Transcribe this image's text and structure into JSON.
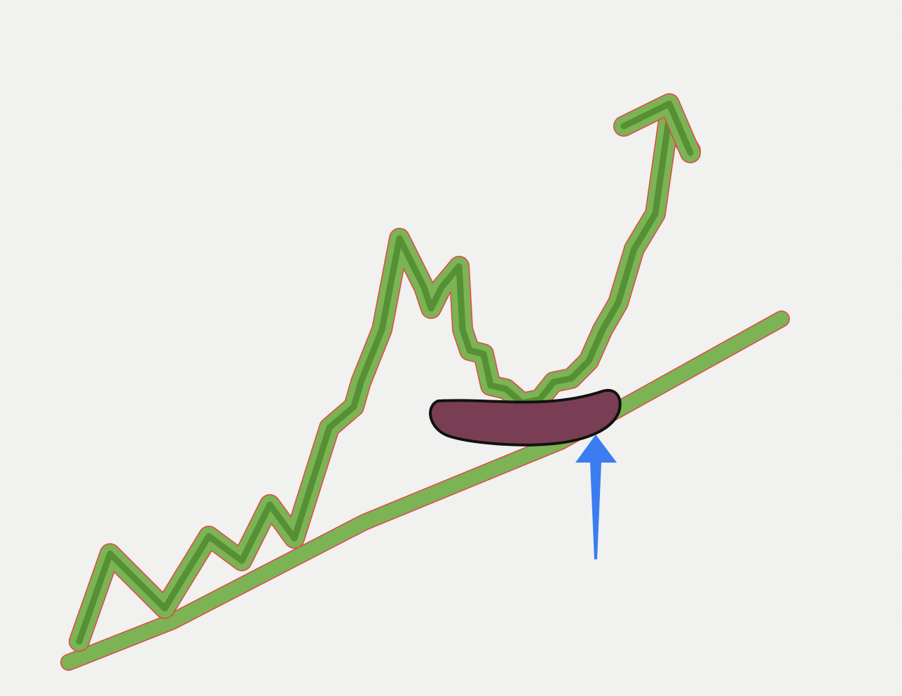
{
  "diagram": {
    "background_color": "#f3f3f1",
    "trendline": {
      "color": "#7cb354",
      "edge_color": "#e0474c",
      "shape": "straight-line"
    },
    "price_path": {
      "color": "#7cb354",
      "inner_color": "#4f8a2f",
      "edge_color": "#e0474c",
      "shape": "zigzag-rising-with-arrowhead"
    },
    "highlight_zone": {
      "fill_color": "#7a3e54",
      "outline_color": "#111111",
      "shape": "rounded-curved-band"
    },
    "pointer_arrow": {
      "color": "#3b7df0",
      "direction": "up"
    }
  }
}
